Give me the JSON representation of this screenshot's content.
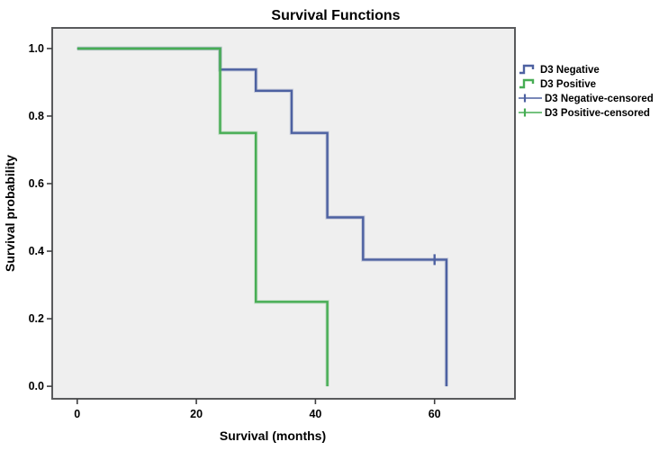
{
  "figure": {
    "background": "#ffffff"
  },
  "chart_data": {
    "type": "line",
    "subtype": "kaplan-meier-step",
    "title": "Survival Functions",
    "xlabel": "Survival (months)",
    "ylabel": "Survival probability",
    "xlim": [
      -4.2,
      73.5
    ],
    "ylim": [
      -0.037,
      1.061
    ],
    "x_ticks": [
      0,
      20,
      40,
      60
    ],
    "x_tick_labels": [
      "0",
      "20",
      "40",
      "60"
    ],
    "y_ticks": [
      0.0,
      0.2,
      0.4,
      0.6,
      0.8,
      1.0
    ],
    "y_tick_labels": [
      "0.0",
      "0.2",
      "0.4",
      "0.6",
      "0.8",
      "1.0"
    ],
    "grid": false,
    "legend_position": "right",
    "plot_bg": "#efefef",
    "border_color": "#595a5c",
    "tick_color": "#3f3f41",
    "series": [
      {
        "name": "D3 Negative",
        "color": "#4d61a1",
        "steps": [
          [
            0,
            1.0
          ],
          [
            24,
            1.0
          ],
          [
            24,
            0.9375
          ],
          [
            30,
            0.9375
          ],
          [
            30,
            0.875
          ],
          [
            36,
            0.875
          ],
          [
            36,
            0.75
          ],
          [
            42,
            0.75
          ],
          [
            42,
            0.5
          ],
          [
            48,
            0.5
          ],
          [
            48,
            0.375
          ],
          [
            62,
            0.375
          ],
          [
            62,
            0.0
          ]
        ],
        "censored": [
          [
            60,
            0.375
          ]
        ]
      },
      {
        "name": "D3 Positive",
        "color": "#47ad54",
        "steps": [
          [
            0,
            1.0
          ],
          [
            24,
            1.0
          ],
          [
            24,
            0.75
          ],
          [
            30,
            0.75
          ],
          [
            30,
            0.25
          ],
          [
            42,
            0.25
          ],
          [
            42,
            0.0
          ]
        ],
        "censored": []
      }
    ],
    "legend": [
      {
        "label": "D3 Negative",
        "color": "#4d61a1",
        "symbol": "step-line"
      },
      {
        "label": "D3 Positive",
        "color": "#47ad54",
        "symbol": "step-line"
      },
      {
        "label": "D3 Negative-censored",
        "color": "#4d61a1",
        "symbol": "plus"
      },
      {
        "label": "D3 Positive-censored",
        "color": "#47ad54",
        "symbol": "plus"
      }
    ]
  }
}
